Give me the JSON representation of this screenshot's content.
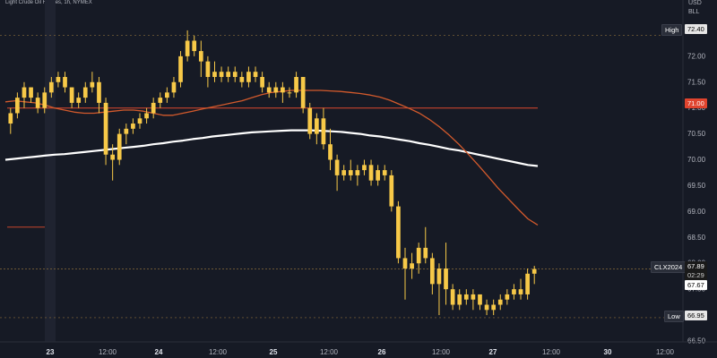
{
  "header": {
    "title": "Light Crude Oil Futures, 1h, NYMEX"
  },
  "currency": [
    "USD",
    "BLL"
  ],
  "colors": {
    "background": "#161a25",
    "candle_up": "#f7c948",
    "candle_down": "#f7c948",
    "sma_short": "#d35a2c",
    "sma_long": "#ffffff",
    "level_line": "#c7442c",
    "dotted_line": "#8a6d3b",
    "tag_red": "#e0442e",
    "tag_dark": "#2a2e39"
  },
  "tags": {
    "high": {
      "label": "High",
      "value": "72.40"
    },
    "level": {
      "value": "71.00"
    },
    "symbol": {
      "label": "CLX2024",
      "value": "67.89",
      "countdown": "02:29",
      "previous": "67.67"
    },
    "low": {
      "label": "Low",
      "value": "66.95"
    }
  },
  "chart_data": {
    "type": "candlestick",
    "title": "Light Crude Oil Futures, 1h, NYMEX",
    "ylim": [
      66.5,
      73.0
    ],
    "y_ticks": [
      "72.50",
      "72.00",
      "71.50",
      "71.00",
      "70.50",
      "70.00",
      "69.50",
      "69.00",
      "68.50",
      "68.00",
      "67.50",
      "67.00",
      "66.50"
    ],
    "x_ticks": [
      "23",
      "12:00",
      "24",
      "12:00",
      "25",
      "12:00",
      "26",
      "12:00",
      "27",
      "12:00",
      "30",
      "12:00"
    ],
    "horizontal_levels": {
      "level": 71.0,
      "high": 72.4,
      "low": 66.95
    },
    "candles": [
      [
        70.7,
        71.0,
        70.5,
        70.9
      ],
      [
        70.9,
        71.3,
        70.8,
        71.2
      ],
      [
        71.2,
        71.5,
        71.0,
        71.4
      ],
      [
        71.4,
        71.4,
        71.1,
        71.2
      ],
      [
        71.2,
        71.3,
        70.9,
        71.0
      ],
      [
        71.0,
        71.4,
        70.9,
        71.3
      ],
      [
        71.3,
        71.6,
        71.2,
        71.5
      ],
      [
        71.5,
        71.7,
        71.4,
        71.6
      ],
      [
        71.6,
        71.7,
        71.3,
        71.4
      ],
      [
        71.4,
        71.4,
        71.0,
        71.1
      ],
      [
        71.1,
        71.3,
        71.0,
        71.2
      ],
      [
        71.2,
        71.5,
        71.1,
        71.4
      ],
      [
        71.4,
        71.7,
        71.3,
        71.5
      ],
      [
        71.5,
        71.6,
        70.9,
        71.1
      ],
      [
        71.1,
        71.2,
        69.9,
        70.1
      ],
      [
        70.1,
        70.3,
        69.6,
        70.0
      ],
      [
        70.0,
        70.6,
        69.9,
        70.5
      ],
      [
        70.5,
        70.7,
        70.3,
        70.6
      ],
      [
        70.6,
        70.8,
        70.5,
        70.7
      ],
      [
        70.7,
        70.9,
        70.6,
        70.8
      ],
      [
        70.8,
        71.0,
        70.7,
        70.9
      ],
      [
        70.9,
        71.2,
        70.8,
        71.1
      ],
      [
        71.1,
        71.3,
        71.0,
        71.2
      ],
      [
        71.2,
        71.4,
        71.1,
        71.3
      ],
      [
        71.3,
        71.6,
        71.2,
        71.5
      ],
      [
        71.5,
        72.1,
        71.4,
        72.0
      ],
      [
        72.0,
        72.5,
        71.9,
        72.3
      ],
      [
        72.3,
        72.4,
        72.0,
        72.1
      ],
      [
        72.1,
        72.3,
        71.6,
        71.9
      ],
      [
        71.9,
        72.0,
        71.4,
        71.6
      ],
      [
        71.6,
        71.9,
        71.5,
        71.7
      ],
      [
        71.7,
        71.8,
        71.5,
        71.6
      ],
      [
        71.6,
        71.8,
        71.5,
        71.7
      ],
      [
        71.7,
        71.8,
        71.5,
        71.6
      ],
      [
        71.6,
        71.7,
        71.4,
        71.5
      ],
      [
        71.5,
        71.8,
        71.4,
        71.7
      ],
      [
        71.7,
        71.8,
        71.5,
        71.6
      ],
      [
        71.6,
        71.7,
        71.3,
        71.4
      ],
      [
        71.4,
        71.5,
        71.2,
        71.3
      ],
      [
        71.3,
        71.5,
        71.2,
        71.4
      ],
      [
        71.4,
        71.5,
        71.1,
        71.3
      ],
      [
        71.3,
        71.4,
        71.2,
        71.3
      ],
      [
        71.3,
        71.7,
        71.2,
        71.6
      ],
      [
        71.6,
        71.6,
        70.9,
        71.0
      ],
      [
        71.0,
        71.1,
        70.4,
        70.5
      ],
      [
        70.5,
        70.9,
        70.3,
        70.8
      ],
      [
        70.8,
        71.0,
        70.2,
        70.3
      ],
      [
        70.3,
        70.6,
        69.8,
        70.0
      ],
      [
        70.0,
        70.1,
        69.4,
        69.7
      ],
      [
        69.7,
        69.9,
        69.6,
        69.8
      ],
      [
        69.8,
        70.0,
        69.6,
        69.7
      ],
      [
        69.7,
        69.9,
        69.5,
        69.8
      ],
      [
        69.8,
        70.0,
        69.7,
        69.9
      ],
      [
        69.9,
        70.0,
        69.5,
        69.6
      ],
      [
        69.6,
        69.9,
        69.5,
        69.8
      ],
      [
        69.8,
        69.9,
        69.6,
        69.7
      ],
      [
        69.7,
        69.8,
        69.0,
        69.1
      ],
      [
        69.1,
        69.2,
        68.0,
        68.1
      ],
      [
        68.1,
        68.3,
        67.3,
        67.9
      ],
      [
        67.9,
        68.2,
        67.7,
        68.0
      ],
      [
        68.0,
        68.4,
        67.8,
        68.3
      ],
      [
        68.3,
        68.7,
        68.0,
        68.1
      ],
      [
        68.1,
        68.2,
        67.4,
        67.6
      ],
      [
        67.6,
        68.0,
        67.0,
        67.9
      ],
      [
        67.9,
        68.4,
        67.2,
        67.5
      ],
      [
        67.5,
        67.6,
        67.1,
        67.2
      ],
      [
        67.2,
        67.5,
        67.1,
        67.4
      ],
      [
        67.4,
        67.5,
        67.2,
        67.3
      ],
      [
        67.3,
        67.5,
        67.1,
        67.4
      ],
      [
        67.4,
        67.4,
        67.1,
        67.2
      ],
      [
        67.2,
        67.3,
        67.0,
        67.1
      ],
      [
        67.1,
        67.3,
        67.0,
        67.2
      ],
      [
        67.2,
        67.4,
        67.1,
        67.3
      ],
      [
        67.3,
        67.5,
        67.2,
        67.4
      ],
      [
        67.4,
        67.6,
        67.3,
        67.5
      ],
      [
        67.5,
        67.7,
        67.3,
        67.4
      ],
      [
        67.4,
        67.9,
        67.3,
        67.8
      ],
      [
        67.8,
        67.95,
        67.6,
        67.89
      ]
    ],
    "candles_order": [
      "open",
      "high",
      "low",
      "close"
    ],
    "sma_short": [
      71.12,
      71.14,
      71.12,
      71.1,
      71.06,
      71.0,
      70.96,
      70.92,
      70.9,
      70.9,
      70.92,
      70.94,
      70.96,
      70.96,
      70.94,
      70.9,
      70.86,
      70.86,
      70.9,
      70.94,
      70.98,
      71.02,
      71.06,
      71.1,
      71.14,
      71.2,
      71.26,
      71.3,
      71.32,
      71.34,
      71.34,
      71.34,
      71.34,
      71.33,
      71.32,
      71.3,
      71.28,
      71.25,
      71.21,
      71.15,
      71.07,
      70.99,
      70.9,
      70.78,
      70.64,
      70.48,
      70.3,
      70.1,
      69.89,
      69.67,
      69.45,
      69.25,
      69.05,
      68.86,
      68.74
    ],
    "sma_long": [
      70.0,
      70.02,
      70.04,
      70.06,
      70.08,
      70.1,
      70.11,
      70.13,
      70.15,
      70.17,
      70.19,
      70.21,
      70.23,
      70.25,
      70.27,
      70.3,
      70.32,
      70.35,
      70.37,
      70.4,
      70.42,
      70.45,
      70.47,
      70.49,
      70.51,
      70.53,
      70.54,
      70.55,
      70.56,
      70.57,
      70.57,
      70.57,
      70.56,
      70.55,
      70.54,
      70.52,
      70.5,
      70.47,
      70.45,
      70.42,
      70.39,
      70.36,
      70.32,
      70.29,
      70.25,
      70.21,
      70.18,
      70.14,
      70.1,
      70.06,
      70.02,
      69.98,
      69.94,
      69.9,
      69.88
    ]
  }
}
